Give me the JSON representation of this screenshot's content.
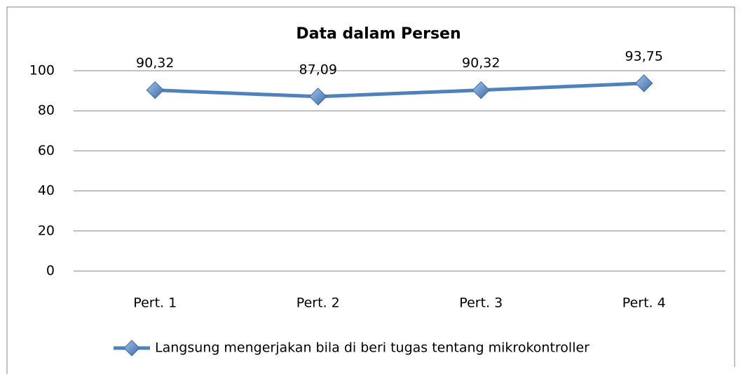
{
  "chart_data": {
    "type": "line",
    "title": "Data dalam Persen",
    "categories": [
      "Pert. 1",
      "Pert. 2",
      "Pert. 3",
      "Pert. 4"
    ],
    "series": [
      {
        "name": "Langsung mengerjakan bila di beri tugas tentang mikrokontroller",
        "color": "#4f81bd",
        "values": [
          90.32,
          87.09,
          90.32,
          93.75
        ],
        "value_labels": [
          "90,32",
          "87,09",
          "90,32",
          "93,75"
        ]
      }
    ],
    "ylim": [
      0,
      100
    ],
    "yticks": [
      0,
      20,
      40,
      60,
      80,
      100
    ],
    "grid": true,
    "legend": "bottom"
  }
}
